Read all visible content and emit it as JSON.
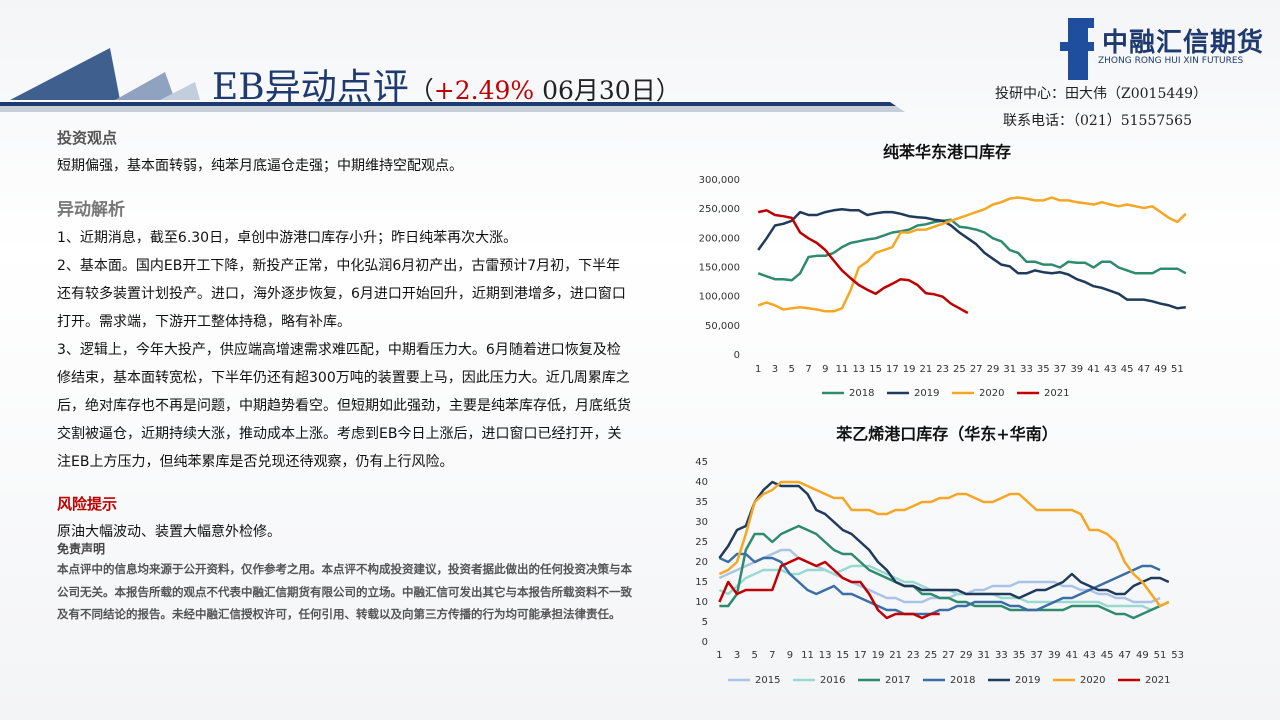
{
  "header": {
    "title": "EB异动点评",
    "paren_open": "（",
    "change": "+2.49%",
    "date": " 06月30日",
    "paren_close": "）"
  },
  "logo": {
    "name": "中融汇信期货",
    "english": "ZHONG RONG HUI XIN FUTURES"
  },
  "contact": {
    "center": "投研中心：田大伟（Z0015449）",
    "phone": "联系电话：（021）51557565"
  },
  "view": {
    "heading": "投资观点",
    "text": "短期偏强，基本面转弱，纯苯月底逼仓走强；中期维持空配观点。"
  },
  "analysis": {
    "heading": "异动解析",
    "items": [
      "1、近期消息，截至6.30日，卓创中游港口库存小升；昨日纯苯再次大涨。",
      "2、基本面。国内EB开工下降，新投产正常，中化弘润6月初产出，古雷预计7月初，下半年还有较多装置计划投产。进口，海外逐步恢复，6月进口开始回升，近期到港增多，进口窗口打开。需求端，下游开工整体持稳，略有补库。",
      "3、逻辑上，今年大投产，供应端高增速需求难匹配，中期看压力大。6月随着进口恢复及检修结束，基本面转宽松，下半年仍还有超300万吨的装置要上马，因此压力大。近几周累库之后，绝对库存也不再是问题，中期趋势看空。但短期如此强劲，主要是纯苯库存低，月底纸货交割被逼仓，近期持续大涨，推动成本上涨。考虑到EB今日上涨后，进口窗口已经打开，关注EB上方压力，但纯苯累库是否兑现还待观察，仍有上行风险。"
    ]
  },
  "risk": {
    "heading": "风险提示",
    "text": "原油大幅波动、装置大幅意外检修。"
  },
  "disclaimer": {
    "heading": "免责声明",
    "text": "本点评中的信息均来源于公开资料，仅作参考之用。本点评不构成投资建议，投资者据此做出的任何投资决策与本公司无关。本报告所载的观点不代表中融汇信期货有限公司的立场。中融汇信可发出其它与本报告所载资料不一致及有不同结论的报告。未经中融汇信授权许可，任何引用、转载以及向第三方传播的行为均可能承担法律责任。"
  },
  "chart_data": [
    {
      "type": "line",
      "title": "纯苯华东港口库存",
      "x": [
        1,
        2,
        3,
        4,
        5,
        6,
        7,
        8,
        9,
        10,
        11,
        12,
        13,
        14,
        15,
        16,
        17,
        18,
        19,
        20,
        21,
        22,
        23,
        24,
        25,
        26,
        27,
        28,
        29,
        30,
        31,
        32,
        33,
        34,
        35,
        36,
        37,
        38,
        39,
        40,
        41,
        42,
        43,
        44,
        45,
        46,
        47,
        48,
        49,
        50,
        51,
        52
      ],
      "xlim": [
        0.5,
        52.5
      ],
      "xticks": [
        1,
        3,
        5,
        7,
        9,
        11,
        13,
        15,
        17,
        19,
        21,
        23,
        25,
        27,
        29,
        31,
        33,
        35,
        37,
        39,
        41,
        43,
        45,
        47,
        49,
        51
      ],
      "ylim": [
        0,
        300000
      ],
      "yticks": [
        0,
        {
          "value": 50000,
          "label": "50,000"
        },
        {
          "value": 100000,
          "label": "100,000"
        },
        {
          "value": 150000,
          "label": "150,000"
        },
        {
          "value": 200000,
          "label": "200,000"
        },
        {
          "value": 250000,
          "label": "250,000"
        },
        {
          "value": 300000,
          "label": "300,000"
        }
      ],
      "legend": "bottom",
      "series": [
        {
          "name": "2018",
          "color": "#2e8b6e",
          "values": [
            140000,
            135000,
            130000,
            130000,
            128000,
            140000,
            168000,
            170000,
            170000,
            175000,
            185000,
            192000,
            195000,
            198000,
            200000,
            205000,
            210000,
            212000,
            215000,
            222000,
            224000,
            228000,
            230000,
            232000,
            220000,
            218000,
            215000,
            210000,
            200000,
            195000,
            180000,
            175000,
            160000,
            160000,
            155000,
            155000,
            150000,
            160000,
            158000,
            158000,
            150000,
            160000,
            160000,
            150000,
            145000,
            140000,
            140000,
            140000,
            148000,
            148000,
            148000,
            140000
          ]
        },
        {
          "name": "2019",
          "color": "#1f3a5a",
          "values": [
            180000,
            200000,
            222000,
            225000,
            230000,
            245000,
            240000,
            240000,
            245000,
            248000,
            250000,
            248000,
            248000,
            240000,
            243000,
            245000,
            245000,
            242000,
            238000,
            236000,
            235000,
            232000,
            230000,
            222000,
            210000,
            200000,
            190000,
            175000,
            165000,
            155000,
            152000,
            140000,
            140000,
            145000,
            142000,
            140000,
            142000,
            138000,
            130000,
            125000,
            118000,
            115000,
            110000,
            105000,
            95000,
            95000,
            95000,
            92000,
            88000,
            85000,
            80000,
            82000
          ]
        },
        {
          "name": "2020",
          "color": "#f5a623",
          "values": [
            85000,
            90000,
            85000,
            78000,
            80000,
            82000,
            80000,
            78000,
            75000,
            75000,
            80000,
            110000,
            150000,
            160000,
            175000,
            180000,
            185000,
            210000,
            210000,
            215000,
            215000,
            220000,
            225000,
            230000,
            235000,
            240000,
            245000,
            250000,
            258000,
            262000,
            268000,
            270000,
            268000,
            265000,
            265000,
            270000,
            265000,
            265000,
            262000,
            260000,
            258000,
            262000,
            258000,
            255000,
            258000,
            255000,
            252000,
            255000,
            245000,
            235000,
            228000,
            242000
          ]
        },
        {
          "name": "2021",
          "color": "#c00000",
          "values": [
            245000,
            248000,
            240000,
            238000,
            235000,
            210000,
            200000,
            192000,
            180000,
            162000,
            145000,
            132000,
            120000,
            112000,
            105000,
            115000,
            122000,
            130000,
            128000,
            120000,
            106000,
            104000,
            100000,
            88000,
            80000,
            72000,
            null,
            null,
            null,
            null,
            null,
            null,
            null,
            null,
            null,
            null,
            null,
            null,
            null,
            null,
            null,
            null,
            null,
            null,
            null,
            null,
            null,
            null,
            null,
            null,
            null,
            null
          ]
        }
      ]
    },
    {
      "type": "line",
      "title": "苯乙烯港口库存（华东+华南）",
      "x": [
        1,
        2,
        3,
        4,
        5,
        6,
        7,
        8,
        9,
        10,
        11,
        12,
        13,
        14,
        15,
        16,
        17,
        18,
        19,
        20,
        21,
        22,
        23,
        24,
        25,
        26,
        27,
        28,
        29,
        30,
        31,
        32,
        33,
        34,
        35,
        36,
        37,
        38,
        39,
        40,
        41,
        42,
        43,
        44,
        45,
        46,
        47,
        48,
        49,
        50,
        51,
        52,
        53
      ],
      "xlim": [
        0.5,
        53.5
      ],
      "xticks": [
        1,
        3,
        5,
        7,
        9,
        11,
        13,
        15,
        17,
        19,
        21,
        23,
        25,
        27,
        29,
        31,
        33,
        35,
        37,
        39,
        41,
        43,
        45,
        47,
        49,
        51,
        53
      ],
      "ylim": [
        0,
        45
      ],
      "yticks": [
        0,
        5,
        10,
        15,
        20,
        25,
        30,
        35,
        40,
        45
      ],
      "legend": "bottom",
      "series": [
        {
          "name": "2015",
          "color": "#a9c4e6",
          "values": [
            16,
            17,
            18,
            19,
            20,
            21,
            22,
            23,
            23,
            21,
            20,
            19,
            18,
            17,
            16,
            15,
            14,
            13,
            12,
            11,
            11,
            10,
            10,
            10,
            11,
            11,
            11,
            12,
            12,
            13,
            13,
            14,
            14,
            14,
            15,
            15,
            15,
            15,
            15,
            14,
            14,
            13,
            13,
            12,
            12,
            11,
            11,
            10,
            10,
            10,
            11,
            null,
            null
          ]
        },
        {
          "name": "2016",
          "color": "#9ad9d1",
          "values": [
            13,
            12,
            14,
            16,
            17,
            18,
            18,
            18,
            17,
            17,
            18,
            18,
            18,
            17,
            18,
            19,
            19,
            19,
            18,
            17,
            16,
            15,
            15,
            14,
            13,
            13,
            13,
            12,
            12,
            12,
            12,
            12,
            11,
            11,
            11,
            10,
            10,
            10,
            10,
            10,
            10,
            10,
            10,
            10,
            9,
            9,
            9,
            9,
            9,
            8,
            9,
            null,
            null
          ]
        },
        {
          "name": "2017",
          "color": "#2e8b6e",
          "values": [
            9,
            9,
            12,
            23,
            27,
            27,
            25,
            27,
            28,
            29,
            28,
            27,
            25,
            23,
            22,
            22,
            20,
            18,
            17,
            16,
            15,
            14,
            14,
            12,
            12,
            11,
            11,
            10,
            10,
            9,
            9,
            9,
            9,
            8,
            8,
            8,
            8,
            8,
            8,
            8,
            9,
            9,
            9,
            9,
            8,
            7,
            7,
            6,
            7,
            8,
            9,
            10,
            null
          ]
        },
        {
          "name": "2018",
          "color": "#3b6ea5",
          "values": [
            21,
            20,
            22,
            22,
            20,
            21,
            21,
            20,
            17,
            15,
            13,
            12,
            13,
            14,
            12,
            12,
            11,
            10,
            9,
            8,
            8,
            7,
            7,
            7,
            7,
            8,
            8,
            9,
            9,
            10,
            10,
            10,
            10,
            9,
            9,
            8,
            8,
            9,
            10,
            11,
            11,
            12,
            13,
            14,
            15,
            16,
            17,
            18,
            19,
            19,
            18,
            null,
            null
          ]
        },
        {
          "name": "2019",
          "color": "#1f3a5a",
          "values": [
            21,
            24,
            28,
            29,
            35,
            38,
            40,
            39,
            39,
            39,
            37,
            33,
            32,
            30,
            28,
            27,
            25,
            23,
            20,
            18,
            15,
            14,
            14,
            13,
            13,
            13,
            13,
            13,
            12,
            12,
            12,
            12,
            12,
            12,
            11,
            12,
            13,
            13,
            14,
            15,
            17,
            15,
            14,
            13,
            13,
            12,
            12,
            14,
            15,
            16,
            16,
            15,
            null
          ]
        },
        {
          "name": "2020",
          "color": "#f5a623",
          "values": [
            17,
            18,
            20,
            27,
            35,
            37,
            38,
            40,
            40,
            40,
            39,
            38,
            37,
            36,
            36,
            33,
            33,
            33,
            32,
            32,
            33,
            33,
            34,
            35,
            35,
            36,
            36,
            37,
            37,
            36,
            35,
            35,
            36,
            37,
            37,
            35,
            33,
            33,
            33,
            33,
            33,
            32,
            28,
            28,
            27,
            25,
            20,
            17,
            15,
            12,
            9,
            10,
            null
          ]
        },
        {
          "name": "2021",
          "color": "#c00000",
          "values": [
            10,
            15,
            12,
            13,
            13,
            13,
            13,
            19,
            20,
            21,
            20,
            19,
            20,
            18,
            16,
            15,
            15,
            12,
            8,
            6,
            7,
            7,
            7,
            6,
            7,
            7,
            null,
            null,
            null,
            null,
            null,
            null,
            null,
            null,
            null,
            null,
            null,
            null,
            null,
            null,
            null,
            null,
            null,
            null,
            null,
            null,
            null,
            null,
            null,
            null,
            null,
            null,
            null
          ]
        }
      ]
    }
  ]
}
